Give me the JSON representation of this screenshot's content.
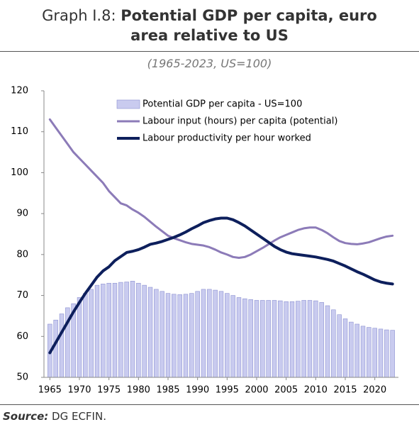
{
  "chart_data": {
    "type": "bar_line",
    "title_prefix": "Graph I.8:",
    "title": "Potential GDP per capita, euro area relative to US",
    "subtitle": "(1965-2023, US=100)",
    "source_label": "Source:",
    "source": "DG ECFIN.",
    "x": [
      1965,
      1966,
      1967,
      1968,
      1969,
      1970,
      1971,
      1972,
      1973,
      1974,
      1975,
      1976,
      1977,
      1978,
      1979,
      1980,
      1981,
      1982,
      1983,
      1984,
      1985,
      1986,
      1987,
      1988,
      1989,
      1990,
      1991,
      1992,
      1993,
      1994,
      1995,
      1996,
      1997,
      1998,
      1999,
      2000,
      2001,
      2002,
      2003,
      2004,
      2005,
      2006,
      2007,
      2008,
      2009,
      2010,
      2011,
      2012,
      2013,
      2014,
      2015,
      2016,
      2017,
      2018,
      2019,
      2020,
      2021,
      2022,
      2023
    ],
    "xlim": [
      1964,
      2024
    ],
    "xticks": [
      1965,
      1970,
      1975,
      1980,
      1985,
      1990,
      1995,
      2000,
      2005,
      2010,
      2015,
      2020
    ],
    "ylim": [
      50,
      120
    ],
    "yticks": [
      50,
      60,
      70,
      80,
      90,
      100,
      110,
      120
    ],
    "grid": false,
    "series": [
      {
        "name": "Potential GDP per capita - US=100",
        "kind": "bar",
        "color": "#c9cbef",
        "values": [
          63,
          64,
          65.5,
          67,
          68,
          69.5,
          70.5,
          71.5,
          72.5,
          72.8,
          73,
          73,
          73.2,
          73.3,
          73.5,
          73,
          72.5,
          72,
          71.5,
          71,
          70.5,
          70.3,
          70.2,
          70.3,
          70.5,
          71,
          71.5,
          71.5,
          71.3,
          71,
          70.5,
          70,
          69.5,
          69.2,
          69,
          68.8,
          68.8,
          68.8,
          68.8,
          68.7,
          68.5,
          68.5,
          68.6,
          68.8,
          68.8,
          68.7,
          68.3,
          67.5,
          66.5,
          65.3,
          64.3,
          63.5,
          63,
          62.5,
          62.2,
          62,
          61.8,
          61.6,
          61.5
        ]
      },
      {
        "name": "Labour input (hours) per capita (potential)",
        "kind": "line",
        "color": "#8c7bb8",
        "values": [
          113,
          111,
          109,
          107,
          105,
          103.5,
          102,
          100.5,
          99,
          97.5,
          95.5,
          94,
          92.5,
          92,
          91,
          90.2,
          89.2,
          88,
          86.8,
          85.7,
          84.6,
          84,
          83.5,
          83,
          82.6,
          82.4,
          82.2,
          81.8,
          81.2,
          80.5,
          80,
          79.4,
          79.2,
          79.4,
          80,
          80.8,
          81.6,
          82.5,
          83.4,
          84.2,
          84.8,
          85.4,
          86,
          86.4,
          86.6,
          86.6,
          86,
          85.2,
          84.2,
          83.3,
          82.8,
          82.6,
          82.5,
          82.7,
          83,
          83.5,
          84,
          84.4,
          84.6
        ]
      },
      {
        "name": "Labour productivity per hour worked",
        "kind": "line",
        "color": "#0d1f5c",
        "values": [
          56,
          58.5,
          61,
          63.5,
          66,
          68.3,
          70.5,
          72.5,
          74.5,
          76,
          77,
          78.5,
          79.5,
          80.5,
          80.8,
          81.2,
          81.8,
          82.5,
          82.8,
          83.2,
          83.7,
          84.2,
          84.8,
          85.5,
          86.3,
          87,
          87.8,
          88.3,
          88.7,
          88.9,
          88.9,
          88.5,
          87.8,
          87,
          86,
          85,
          84,
          83,
          82,
          81.2,
          80.6,
          80.2,
          80,
          79.8,
          79.6,
          79.4,
          79.1,
          78.8,
          78.4,
          77.8,
          77.2,
          76.5,
          75.8,
          75.2,
          74.5,
          73.8,
          73.3,
          73,
          72.8
        ]
      }
    ]
  }
}
